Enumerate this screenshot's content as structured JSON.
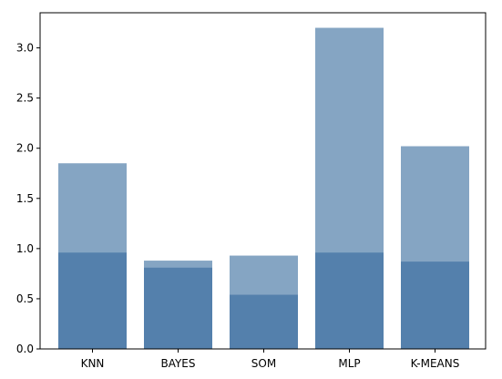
{
  "chart_data": {
    "type": "bar",
    "categories": [
      "KNN",
      "BAYES",
      "SOM",
      "MLP",
      "K-MEANS"
    ],
    "series": [
      {
        "values": [
          1.85,
          0.88,
          0.93,
          3.2,
          2.02
        ]
      },
      {
        "values": [
          0.96,
          0.81,
          0.54,
          0.96,
          0.87
        ]
      }
    ],
    "ylim": [
      0,
      3.35
    ],
    "yticks": [
      0.0,
      0.5,
      1.0,
      1.5,
      2.0,
      2.5,
      3.0
    ],
    "ytick_labels": [
      "0.0",
      "0.5",
      "1.0",
      "1.5",
      "2.0",
      "2.5",
      "3.0"
    ],
    "grid": false,
    "colors": [
      "#85a5c3",
      "#5480ac"
    ],
    "title": "",
    "xlabel": "",
    "ylabel": ""
  }
}
